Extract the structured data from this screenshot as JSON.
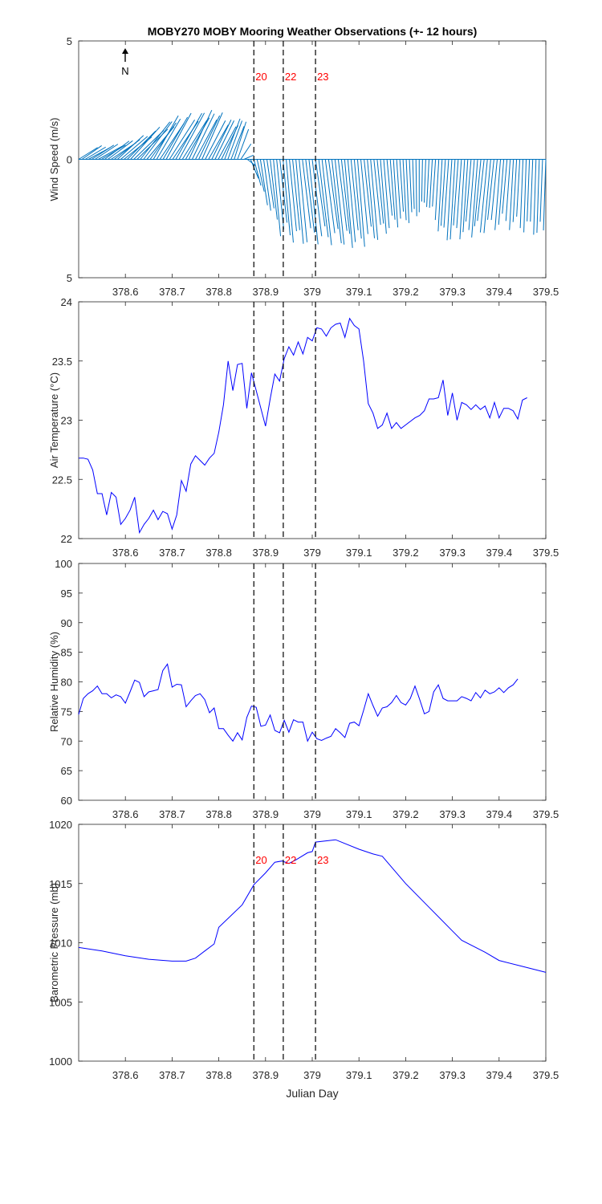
{
  "figure": {
    "title": "MOBY270 MOBY Mooring Weather Observations (+- 12 hours)",
    "xlabel": "Julian Day",
    "north_label": "N",
    "colors": {
      "line": "#0000ff",
      "wind": "#0072bd",
      "marker_text": "#ff0000",
      "axes": "#262626"
    }
  },
  "chart_data": [
    {
      "type": "quiver",
      "ylabel": "Wind Speed (m/s)",
      "yticks": [
        "5",
        "0",
        "5"
      ],
      "xlim": [
        378.5,
        379.5
      ],
      "ylim": [
        -5,
        5
      ],
      "xticks": [
        "378.6",
        "378.7",
        "378.8",
        "378.9",
        "379",
        "379.1",
        "379.2",
        "379.3",
        "379.4",
        "379.5"
      ],
      "time_markers": [
        {
          "label": "20",
          "x": 378.875
        },
        {
          "label": "22",
          "x": 378.938
        },
        {
          "label": "23",
          "x": 379.007
        }
      ],
      "samples_per_hour": 6,
      "hourly_vectors": [
        {
          "x": 378.5,
          "u": 0.8,
          "v": 0.5
        },
        {
          "x": 378.542,
          "u": 1.0,
          "v": 0.6
        },
        {
          "x": 378.583,
          "u": 1.1,
          "v": 0.9
        },
        {
          "x": 378.625,
          "u": 1.3,
          "v": 1.4
        },
        {
          "x": 378.667,
          "u": 1.0,
          "v": 1.7
        },
        {
          "x": 378.708,
          "u": 1.1,
          "v": 1.8
        },
        {
          "x": 378.75,
          "u": 0.9,
          "v": 1.9
        },
        {
          "x": 378.792,
          "u": 0.8,
          "v": 1.5
        },
        {
          "x": 378.833,
          "u": 0.5,
          "v": 1.6
        },
        {
          "x": 378.875,
          "u": 0.3,
          "v": -1.2
        },
        {
          "x": 378.917,
          "u": 0.3,
          "v": -2.9
        },
        {
          "x": 378.958,
          "u": 0.3,
          "v": -3.3
        },
        {
          "x": 379.0,
          "u": 0.4,
          "v": -3.2
        },
        {
          "x": 379.042,
          "u": 0.4,
          "v": -3.3
        },
        {
          "x": 379.083,
          "u": 0.3,
          "v": -3.4
        },
        {
          "x": 379.125,
          "u": 0.3,
          "v": -3.1
        },
        {
          "x": 379.167,
          "u": 0.2,
          "v": -2.6
        },
        {
          "x": 379.208,
          "u": 0.1,
          "v": -2.4
        },
        {
          "x": 379.25,
          "u": -0.1,
          "v": -1.8
        },
        {
          "x": 379.292,
          "u": -0.2,
          "v": -3.2
        },
        {
          "x": 379.333,
          "u": -0.2,
          "v": -3.0
        },
        {
          "x": 379.375,
          "u": -0.3,
          "v": -2.9
        },
        {
          "x": 379.417,
          "u": -0.2,
          "v": -2.6
        },
        {
          "x": 379.458,
          "u": -0.1,
          "v": -2.8
        },
        {
          "x": 379.5,
          "u": -0.1,
          "v": -3.0
        }
      ]
    },
    {
      "type": "line",
      "ylabel": "Air Temperature (°C)",
      "xlim": [
        378.5,
        379.5
      ],
      "ylim": [
        22,
        24
      ],
      "xticks": [
        "378.6",
        "378.7",
        "378.8",
        "378.9",
        "379",
        "379.1",
        "379.2",
        "379.3",
        "379.4",
        "379.5"
      ],
      "yticks": [
        "22",
        "22.5",
        "23",
        "23.5",
        "24"
      ],
      "time_markers": [
        {
          "label": "20",
          "x": 378.875
        },
        {
          "label": "22",
          "x": 378.938
        },
        {
          "label": "23",
          "x": 379.007
        }
      ],
      "x_start": 378.5,
      "x_step": 0.01,
      "y": [
        22.68,
        22.68,
        22.67,
        22.58,
        22.38,
        22.38,
        22.2,
        22.39,
        22.35,
        22.12,
        22.17,
        22.24,
        22.35,
        22.05,
        22.12,
        22.17,
        22.24,
        22.16,
        22.23,
        22.21,
        22.08,
        22.2,
        22.49,
        22.4,
        22.63,
        22.7,
        22.66,
        22.62,
        22.68,
        22.72,
        22.9,
        23.13,
        23.5,
        23.25,
        23.47,
        23.48,
        23.1,
        23.4,
        23.25,
        23.1,
        22.95,
        23.18,
        23.39,
        23.33,
        23.52,
        23.62,
        23.55,
        23.66,
        23.56,
        23.7,
        23.67,
        23.78,
        23.77,
        23.71,
        23.78,
        23.81,
        23.82,
        23.7,
        23.86,
        23.8,
        23.77,
        23.5,
        23.14,
        23.06,
        22.93,
        22.96,
        23.06,
        22.93,
        22.98,
        22.93,
        22.96,
        22.99,
        23.02,
        23.04,
        23.08,
        23.18,
        23.18,
        23.19,
        23.34,
        23.04,
        23.23,
        23.0,
        23.15,
        23.13,
        23.09,
        23.13,
        23.09,
        23.12,
        23.02,
        23.15,
        23.02,
        23.1,
        23.1,
        23.08,
        23.01,
        23.17,
        23.19
      ]
    },
    {
      "type": "line",
      "ylabel": "Relative Humidity (%)",
      "xlim": [
        378.5,
        379.5
      ],
      "ylim": [
        60,
        100
      ],
      "xticks": [
        "378.6",
        "378.7",
        "378.8",
        "378.9",
        "379",
        "379.1",
        "379.2",
        "379.3",
        "379.4",
        "379.5"
      ],
      "yticks": [
        "60",
        "65",
        "70",
        "75",
        "80",
        "85",
        "90",
        "95",
        "100"
      ],
      "time_markers": [
        {
          "label": "20",
          "x": 378.875
        },
        {
          "label": "22",
          "x": 378.938
        },
        {
          "label": "23",
          "x": 379.007
        }
      ],
      "x_start": 378.5,
      "x_step": 0.01,
      "y": [
        74.5,
        77.2,
        78.0,
        78.5,
        79.3,
        78.0,
        78.0,
        77.3,
        77.8,
        77.5,
        76.4,
        78.3,
        80.3,
        79.9,
        77.5,
        78.3,
        78.5,
        78.7,
        81.9,
        83.0,
        79.1,
        79.6,
        79.5,
        75.8,
        76.8,
        77.7,
        78.0,
        77.0,
        74.8,
        75.6,
        72.1,
        72.1,
        71.0,
        70.0,
        71.4,
        70.2,
        74.0,
        75.9,
        75.7,
        72.5,
        72.7,
        74.4,
        71.8,
        71.4,
        73.5,
        71.5,
        73.6,
        73.2,
        73.2,
        70.0,
        71.5,
        70.4,
        70.1,
        70.5,
        70.8,
        72.1,
        71.4,
        70.6,
        73.0,
        73.2,
        72.6,
        75.2,
        78.0,
        76.0,
        74.2,
        75.6,
        75.8,
        76.5,
        77.7,
        76.5,
        76.1,
        77.2,
        79.3,
        77.0,
        74.6,
        75.0,
        78.3,
        79.5,
        77.2,
        76.8,
        76.8,
        76.8,
        77.5,
        77.2,
        76.8,
        78.2,
        77.3,
        78.6,
        78.0,
        78.3,
        79.0,
        78.2,
        79.0,
        79.5,
        80.5
      ]
    },
    {
      "type": "line",
      "ylabel": "Barometric Pressure (mb)",
      "xlim": [
        378.5,
        379.5
      ],
      "ylim": [
        1000,
        1020
      ],
      "xticks": [
        "378.6",
        "378.7",
        "378.8",
        "378.9",
        "379",
        "379.1",
        "379.2",
        "379.3",
        "379.4",
        "379.5"
      ],
      "yticks": [
        "1000",
        "1005",
        "1010",
        "1015",
        "1020"
      ],
      "time_markers": [
        {
          "label": "20",
          "x": 378.875
        },
        {
          "label": "22",
          "x": 378.938
        },
        {
          "label": "23",
          "x": 379.007
        }
      ],
      "points": [
        [
          378.5,
          1009.6
        ],
        [
          378.55,
          1009.3
        ],
        [
          378.6,
          1008.9
        ],
        [
          378.65,
          1008.6
        ],
        [
          378.7,
          1008.45
        ],
        [
          378.73,
          1008.45
        ],
        [
          378.75,
          1008.7
        ],
        [
          378.77,
          1009.3
        ],
        [
          378.79,
          1009.9
        ],
        [
          378.8,
          1011.3
        ],
        [
          378.85,
          1013.2
        ],
        [
          378.875,
          1014.9
        ],
        [
          378.9,
          1015.9
        ],
        [
          378.92,
          1016.8
        ],
        [
          378.935,
          1016.9
        ],
        [
          378.95,
          1016.7
        ],
        [
          378.965,
          1017.0
        ],
        [
          378.99,
          1017.6
        ],
        [
          379.0,
          1017.7
        ],
        [
          379.007,
          1018.5
        ],
        [
          379.05,
          1018.7
        ],
        [
          379.1,
          1017.9
        ],
        [
          379.13,
          1017.5
        ],
        [
          379.15,
          1017.3
        ],
        [
          379.2,
          1015.0
        ],
        [
          379.25,
          1013.0
        ],
        [
          379.3,
          1011.0
        ],
        [
          379.32,
          1010.2
        ],
        [
          379.37,
          1009.2
        ],
        [
          379.4,
          1008.5
        ],
        [
          379.45,
          1008.0
        ],
        [
          379.5,
          1007.5
        ]
      ]
    }
  ]
}
